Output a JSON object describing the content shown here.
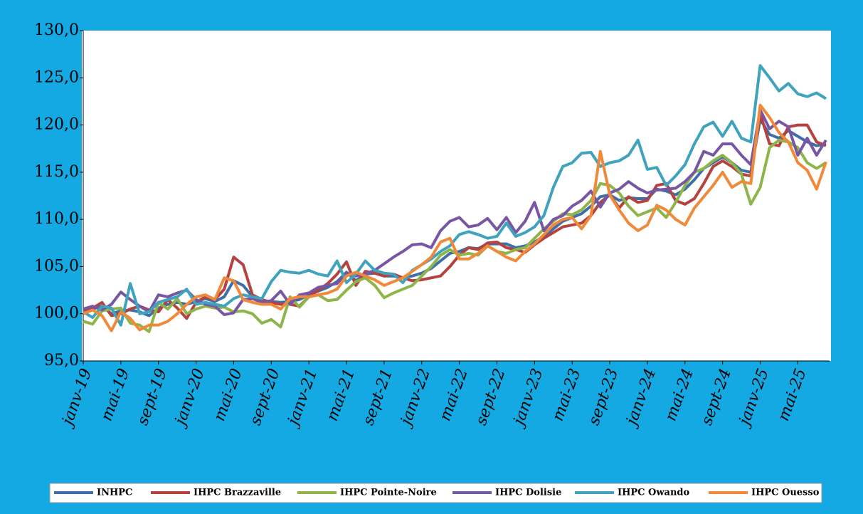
{
  "chart_data": {
    "type": "line",
    "categories": [
      "janv-19",
      null,
      null,
      null,
      "mai-19",
      null,
      null,
      null,
      "sept-19",
      null,
      null,
      null,
      "janv-20",
      null,
      null,
      null,
      "mai-20",
      null,
      null,
      null,
      "sept-20",
      null,
      null,
      null,
      "janv-21",
      null,
      null,
      null,
      "mai-21",
      null,
      null,
      null,
      "sept-21",
      null,
      null,
      null,
      "janv-22",
      null,
      null,
      null,
      "mai-22",
      null,
      null,
      null,
      "sept-22",
      null,
      null,
      null,
      "janv-23",
      null,
      null,
      null,
      "mai-23",
      null,
      null,
      null,
      "sept-23",
      null,
      null,
      null,
      "janv-24",
      null,
      null,
      null,
      "mai-24",
      null,
      null,
      null,
      "sept-24",
      null,
      null,
      null,
      "janv-25",
      null,
      null,
      null,
      "mai-25",
      null,
      null,
      null
    ],
    "ylim": [
      95,
      130
    ],
    "yticks": [
      {
        "value": 95,
        "label": "95,0"
      },
      {
        "value": 100,
        "label": "100,0"
      },
      {
        "value": 105,
        "label": "105,0"
      },
      {
        "value": 110,
        "label": "110,0"
      },
      {
        "value": 115,
        "label": "115,0"
      },
      {
        "value": 120,
        "label": "120,0"
      },
      {
        "value": 125,
        "label": "125,0"
      },
      {
        "value": 130,
        "label": "130,0"
      }
    ],
    "grid": false,
    "legend": "bottom",
    "series": [
      {
        "name": "INHPC",
        "color": "#3f6fa8",
        "values": [
          100.2,
          100.5,
          100.8,
          100.0,
          100.3,
          100.4,
          100.2,
          99.8,
          100.6,
          101.0,
          101.2,
          101.0,
          101.3,
          101.6,
          101.3,
          101.8,
          103.5,
          103.0,
          101.8,
          101.4,
          101.3,
          101.2,
          101.3,
          101.5,
          102.0,
          102.4,
          102.8,
          103.4,
          104.4,
          103.5,
          104.2,
          104.3,
          104.0,
          104.0,
          103.8,
          104.0,
          104.3,
          104.8,
          105.6,
          106.4,
          106.6,
          107.0,
          106.9,
          107.4,
          107.4,
          107.4,
          107.0,
          107.2,
          107.6,
          108.2,
          109.0,
          109.8,
          110.2,
          110.6,
          111.4,
          112.4,
          112.6,
          112.0,
          112.3,
          112.2,
          112.2,
          113.2,
          113.0,
          112.6,
          113.2,
          114.2,
          115.4,
          116.0,
          116.6,
          116.0,
          115.2,
          115.0,
          120.6,
          119.0,
          118.6,
          119.4,
          118.8,
          118.2,
          117.8,
          118.0
        ]
      },
      {
        "name": "IHPC Brazzaville",
        "color": "#b5423f",
        "values": [
          100.3,
          100.6,
          101.2,
          99.8,
          100.0,
          100.5,
          100.8,
          100.4,
          100.2,
          101.5,
          100.6,
          99.5,
          101.2,
          101.8,
          101.5,
          102.6,
          106.0,
          105.2,
          102.0,
          101.5,
          101.2,
          101.0,
          101.0,
          100.8,
          101.8,
          102.5,
          103.2,
          104.2,
          105.5,
          103.0,
          104.5,
          104.3,
          104.0,
          104.2,
          103.8,
          103.5,
          103.6,
          103.8,
          104.0,
          105.0,
          106.2,
          107.0,
          106.8,
          107.5,
          107.6,
          107.0,
          106.8,
          106.5,
          107.3,
          108.0,
          108.6,
          109.2,
          109.4,
          109.6,
          110.4,
          111.8,
          112.6,
          111.2,
          112.4,
          111.8,
          112.0,
          113.6,
          113.8,
          112.0,
          111.6,
          112.2,
          113.8,
          115.6,
          116.2,
          115.6,
          114.8,
          114.6,
          121.2,
          118.0,
          117.8,
          119.8,
          120.0,
          120.0,
          118.2,
          117.8
        ]
      },
      {
        "name": "IHPC Pointe-Noire",
        "color": "#8db54a",
        "values": [
          99.2,
          98.9,
          100.3,
          100.5,
          100.6,
          99.0,
          98.8,
          98.1,
          101.2,
          100.5,
          101.6,
          100.0,
          100.5,
          100.8,
          100.6,
          100.7,
          100.2,
          100.3,
          100.0,
          99.0,
          99.4,
          98.6,
          101.8,
          100.7,
          101.8,
          102.0,
          101.4,
          101.5,
          102.5,
          103.4,
          103.8,
          103.0,
          101.7,
          102.2,
          102.6,
          103.0,
          104.0,
          105.0,
          106.2,
          106.8,
          106.2,
          106.4,
          106.2,
          107.2,
          106.6,
          106.4,
          106.8,
          107.0,
          108.0,
          109.0,
          109.8,
          110.6,
          110.5,
          111.0,
          112.0,
          113.8,
          113.6,
          112.8,
          111.4,
          110.4,
          110.8,
          111.2,
          110.2,
          111.8,
          113.6,
          115.0,
          115.4,
          116.2,
          116.8,
          116.0,
          114.8,
          111.6,
          113.4,
          117.6,
          118.4,
          118.2,
          117.6,
          116.0,
          115.4,
          116.0
        ]
      },
      {
        "name": "IHPC Dolisie",
        "color": "#7756a3",
        "values": [
          100.5,
          100.8,
          100.4,
          101.0,
          102.3,
          101.5,
          100.8,
          100.2,
          102.0,
          101.8,
          102.2,
          102.5,
          101.5,
          101.0,
          100.8,
          99.9,
          100.1,
          101.5,
          101.6,
          101.2,
          101.4,
          102.4,
          101.0,
          102.0,
          102.2,
          102.8,
          103.0,
          103.2,
          104.3,
          104.0,
          104.2,
          104.6,
          105.3,
          106.0,
          106.6,
          107.3,
          107.4,
          107.0,
          108.8,
          109.8,
          110.2,
          109.2,
          109.4,
          110.1,
          108.9,
          110.2,
          108.6,
          109.8,
          111.8,
          108.8,
          110.0,
          110.4,
          111.4,
          112.0,
          113.0,
          111.3,
          112.8,
          113.2,
          114.0,
          113.3,
          112.8,
          113.1,
          113.2,
          113.3,
          114.0,
          115.0,
          117.2,
          116.8,
          118.0,
          118.0,
          116.8,
          115.8,
          121.6,
          119.6,
          120.4,
          119.8,
          116.8,
          118.6,
          116.8,
          118.4
        ]
      },
      {
        "name": "IHPC Owando",
        "color": "#3fa3bd",
        "values": [
          100.2,
          99.6,
          100.8,
          100.6,
          98.8,
          103.2,
          100.0,
          100.2,
          101.2,
          101.5,
          101.8,
          102.6,
          101.0,
          101.2,
          101.0,
          100.8,
          101.6,
          102.0,
          101.8,
          101.6,
          103.4,
          104.6,
          104.4,
          104.3,
          104.6,
          104.2,
          104.0,
          105.6,
          103.3,
          104.2,
          105.6,
          104.6,
          104.3,
          104.2,
          103.3,
          104.6,
          105.2,
          105.8,
          106.6,
          107.2,
          108.4,
          108.7,
          108.4,
          108.0,
          108.2,
          109.6,
          108.2,
          108.6,
          109.2,
          110.4,
          113.4,
          115.6,
          116.0,
          117.0,
          117.1,
          115.6,
          116.0,
          116.2,
          116.8,
          118.4,
          115.3,
          115.5,
          113.6,
          114.6,
          115.8,
          118.0,
          119.8,
          120.3,
          118.8,
          120.4,
          118.6,
          118.2,
          126.3,
          125.0,
          123.6,
          124.4,
          123.3,
          123.0,
          123.4,
          122.8
        ]
      },
      {
        "name": "IHPC Ouesso",
        "color": "#f08a3a",
        "values": [
          100.0,
          100.4,
          99.8,
          98.2,
          100.2,
          99.5,
          98.3,
          98.8,
          98.8,
          99.2,
          100.0,
          101.0,
          101.8,
          102.0,
          101.5,
          103.8,
          103.5,
          101.5,
          101.2,
          101.0,
          101.0,
          100.5,
          101.6,
          101.8,
          101.8,
          102.0,
          102.2,
          102.6,
          104.0,
          104.4,
          104.0,
          103.6,
          103.0,
          103.4,
          103.8,
          104.5,
          105.2,
          106.0,
          107.6,
          108.0,
          105.8,
          105.8,
          106.4,
          107.2,
          106.6,
          106.0,
          105.6,
          106.6,
          107.4,
          108.4,
          109.4,
          110.0,
          110.2,
          109.0,
          110.4,
          117.2,
          112.6,
          111.0,
          109.6,
          108.8,
          109.4,
          111.5,
          111.0,
          110.0,
          109.4,
          111.2,
          112.4,
          113.6,
          115.0,
          113.4,
          114.0,
          113.8,
          122.1,
          120.8,
          119.2,
          118.2,
          116.0,
          115.2,
          113.2,
          116.1
        ]
      }
    ]
  }
}
